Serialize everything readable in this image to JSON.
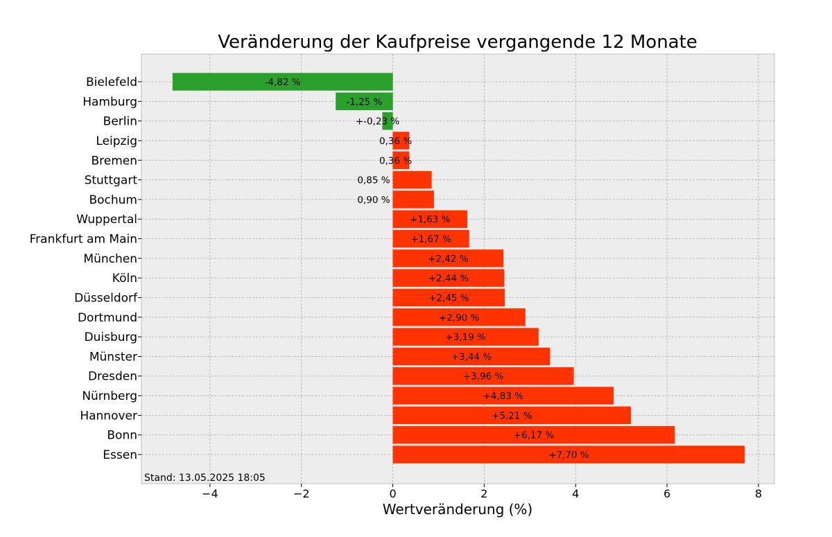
{
  "chart_data": {
    "type": "bar",
    "orientation": "horizontal",
    "title": "Veränderung der Kaufpreise vergangende 12 Monate",
    "xlabel": "Wertveränderung (%)",
    "ylabel": "",
    "xlim": [
      -5.5,
      8.35
    ],
    "xticks": [
      -4,
      -2,
      0,
      2,
      4,
      6,
      8
    ],
    "xtick_labels": [
      "−4",
      "−2",
      "0",
      "2",
      "4",
      "6",
      "8"
    ],
    "grid": true,
    "grid_style": "dashed",
    "legend": "none",
    "categories": [
      "Bielefeld",
      "Hamburg",
      "Berlin",
      "Leipzig",
      "Bremen",
      "Stuttgart",
      "Bochum",
      "Wuppertal",
      "Frankfurt am Main",
      "München",
      "Köln",
      "Düsseldorf",
      "Dortmund",
      "Duisburg",
      "Münster",
      "Dresden",
      "Nürnberg",
      "Hannover",
      "Bonn",
      "Essen"
    ],
    "values": [
      -4.82,
      -1.25,
      -0.23,
      0.36,
      0.36,
      0.85,
      0.9,
      1.63,
      1.67,
      2.42,
      2.44,
      2.45,
      2.9,
      3.19,
      3.44,
      3.96,
      4.83,
      5.21,
      6.17,
      7.7
    ],
    "value_labels": [
      "-4,82 %",
      "-1,25 %",
      "+-0,23 %",
      "0,36 %",
      "0,36 %",
      "0,85 %",
      "0,90 %",
      "+1,63 %",
      "+1,67 %",
      "+2,42 %",
      "+2,44 %",
      "+2,45 %",
      "+2,90 %",
      "+3,19 %",
      "+3,44 %",
      "+3,96 %",
      "+4,83 %",
      "+5,21 %",
      "+6,17 %",
      "+7,70 %"
    ],
    "annotation": "Stand: 13.05.2025 18:05",
    "colors": {
      "negative": "#2ca02c",
      "positive": "#ff3300",
      "plot_background": "#ededed",
      "grid": "#b0b0b0",
      "frame": "#bcbcbc"
    }
  }
}
